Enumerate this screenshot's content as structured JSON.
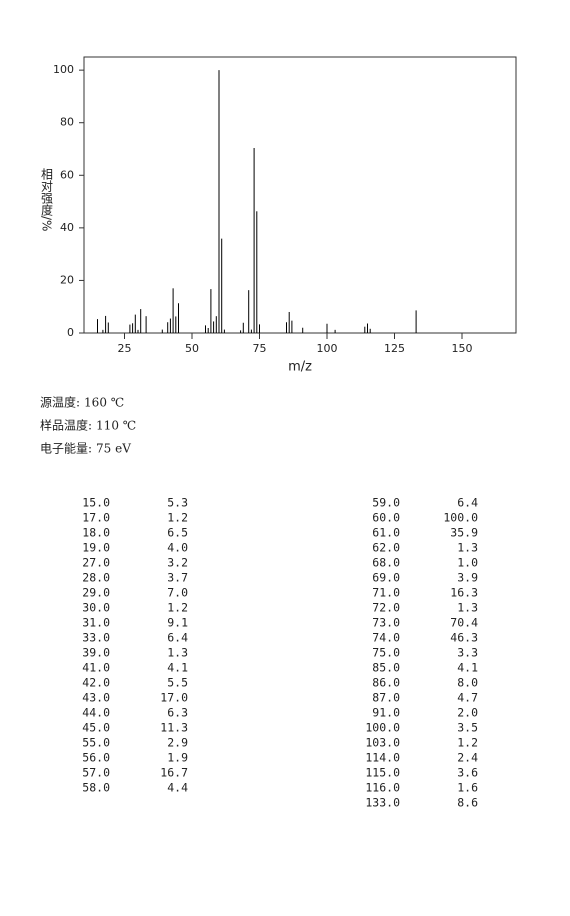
{
  "chart_data": {
    "type": "bar",
    "xlabel": "m/z",
    "ylabel": "相对强度/%",
    "x": [
      15,
      17,
      18,
      19,
      27,
      28,
      29,
      30,
      31,
      33,
      39,
      41,
      42,
      43,
      44,
      45,
      55,
      56,
      57,
      58,
      59,
      60,
      61,
      62,
      68,
      69,
      71,
      72,
      73,
      74,
      75,
      85,
      86,
      87,
      91,
      100,
      103,
      114,
      115,
      116,
      133
    ],
    "values": [
      5.3,
      1.2,
      6.5,
      4.0,
      3.2,
      3.7,
      7.0,
      1.2,
      9.1,
      6.4,
      1.3,
      4.1,
      5.5,
      17.0,
      6.3,
      11.3,
      2.9,
      1.9,
      16.7,
      4.4,
      6.4,
      100.0,
      35.9,
      1.3,
      1.0,
      3.9,
      16.3,
      1.3,
      70.4,
      46.3,
      3.3,
      4.1,
      8.0,
      4.7,
      2.0,
      3.5,
      1.2,
      2.4,
      3.6,
      1.6,
      8.6
    ],
    "color": "#000000",
    "xlim": [
      10,
      170
    ],
    "xticks": [
      25,
      50,
      75,
      100,
      125,
      150
    ],
    "ylim": [
      0,
      105
    ],
    "yticks": [
      0,
      20,
      40,
      60,
      80,
      100
    ]
  },
  "conditions": [
    {
      "label": "源温度:",
      "value": "160 ℃"
    },
    {
      "label": "样品温度:",
      "value": "110 ℃"
    },
    {
      "label": "电子能量:",
      "value": "75 eV"
    }
  ],
  "peak_table": {
    "left": [
      [
        "15.0",
        "5.3"
      ],
      [
        "17.0",
        "1.2"
      ],
      [
        "18.0",
        "6.5"
      ],
      [
        "19.0",
        "4.0"
      ],
      [
        "27.0",
        "3.2"
      ],
      [
        "28.0",
        "3.7"
      ],
      [
        "29.0",
        "7.0"
      ],
      [
        "30.0",
        "1.2"
      ],
      [
        "31.0",
        "9.1"
      ],
      [
        "33.0",
        "6.4"
      ],
      [
        "39.0",
        "1.3"
      ],
      [
        "41.0",
        "4.1"
      ],
      [
        "42.0",
        "5.5"
      ],
      [
        "43.0",
        "17.0"
      ],
      [
        "44.0",
        "6.3"
      ],
      [
        "45.0",
        "11.3"
      ],
      [
        "55.0",
        "2.9"
      ],
      [
        "56.0",
        "1.9"
      ],
      [
        "57.0",
        "16.7"
      ],
      [
        "58.0",
        "4.4"
      ]
    ],
    "right": [
      [
        "59.0",
        "6.4"
      ],
      [
        "60.0",
        "100.0"
      ],
      [
        "61.0",
        "35.9"
      ],
      [
        "62.0",
        "1.3"
      ],
      [
        "68.0",
        "1.0"
      ],
      [
        "69.0",
        "3.9"
      ],
      [
        "71.0",
        "16.3"
      ],
      [
        "72.0",
        "1.3"
      ],
      [
        "73.0",
        "70.4"
      ],
      [
        "74.0",
        "46.3"
      ],
      [
        "75.0",
        "3.3"
      ],
      [
        "85.0",
        "4.1"
      ],
      [
        "86.0",
        "8.0"
      ],
      [
        "87.0",
        "4.7"
      ],
      [
        "91.0",
        "2.0"
      ],
      [
        "100.0",
        "3.5"
      ],
      [
        "103.0",
        "1.2"
      ],
      [
        "114.0",
        "2.4"
      ],
      [
        "115.0",
        "3.6"
      ],
      [
        "116.0",
        "1.6"
      ],
      [
        "133.0",
        "8.6"
      ]
    ]
  }
}
